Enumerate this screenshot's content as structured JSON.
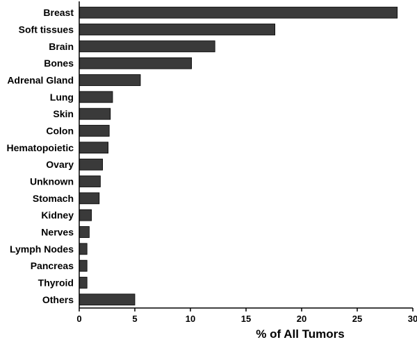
{
  "chart_data": {
    "type": "bar",
    "orientation": "horizontal",
    "title": "",
    "xlabel": "% of All Tumors",
    "ylabel": "",
    "xlim": [
      0,
      30
    ],
    "xticks": [
      0,
      5,
      10,
      15,
      20,
      25,
      30
    ],
    "grid": false,
    "bar_color": "#3a3a3a",
    "categories": [
      "Breast",
      "Soft tissues",
      "Brain",
      "Bones",
      "Adrenal Gland",
      "Lung",
      "Skin",
      "Colon",
      "Hematopoietic",
      "Ovary",
      "Unknown",
      "Stomach",
      "Kidney",
      "Nerves",
      "Lymph Nodes",
      "Pancreas",
      "Thyroid",
      "Others"
    ],
    "values": [
      28.6,
      17.6,
      12.2,
      10.1,
      5.5,
      3.0,
      2.8,
      2.7,
      2.6,
      2.1,
      1.9,
      1.8,
      1.1,
      0.9,
      0.7,
      0.7,
      0.7,
      5.0
    ]
  }
}
